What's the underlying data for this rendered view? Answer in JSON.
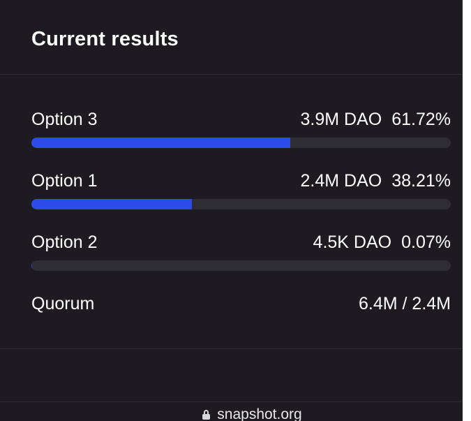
{
  "card": {
    "title": "Current results"
  },
  "results": [
    {
      "label": "Option 3",
      "amount": "3.9M DAO",
      "percent": "61.72%",
      "fraction": 0.6172
    },
    {
      "label": "Option 1",
      "amount": "2.4M DAO",
      "percent": "38.21%",
      "fraction": 0.3821
    },
    {
      "label": "Option 2",
      "amount": "4.5K DAO",
      "percent": "0.07%",
      "fraction": 0.0007
    }
  ],
  "quorum": {
    "label": "Quorum",
    "value": "6.4M / 2.4M"
  },
  "browser": {
    "url": "snapshot.org"
  },
  "colors": {
    "card_background": "#1d1b21",
    "bar_fill": "#2d4be8",
    "bar_track": "#2e2d33"
  }
}
